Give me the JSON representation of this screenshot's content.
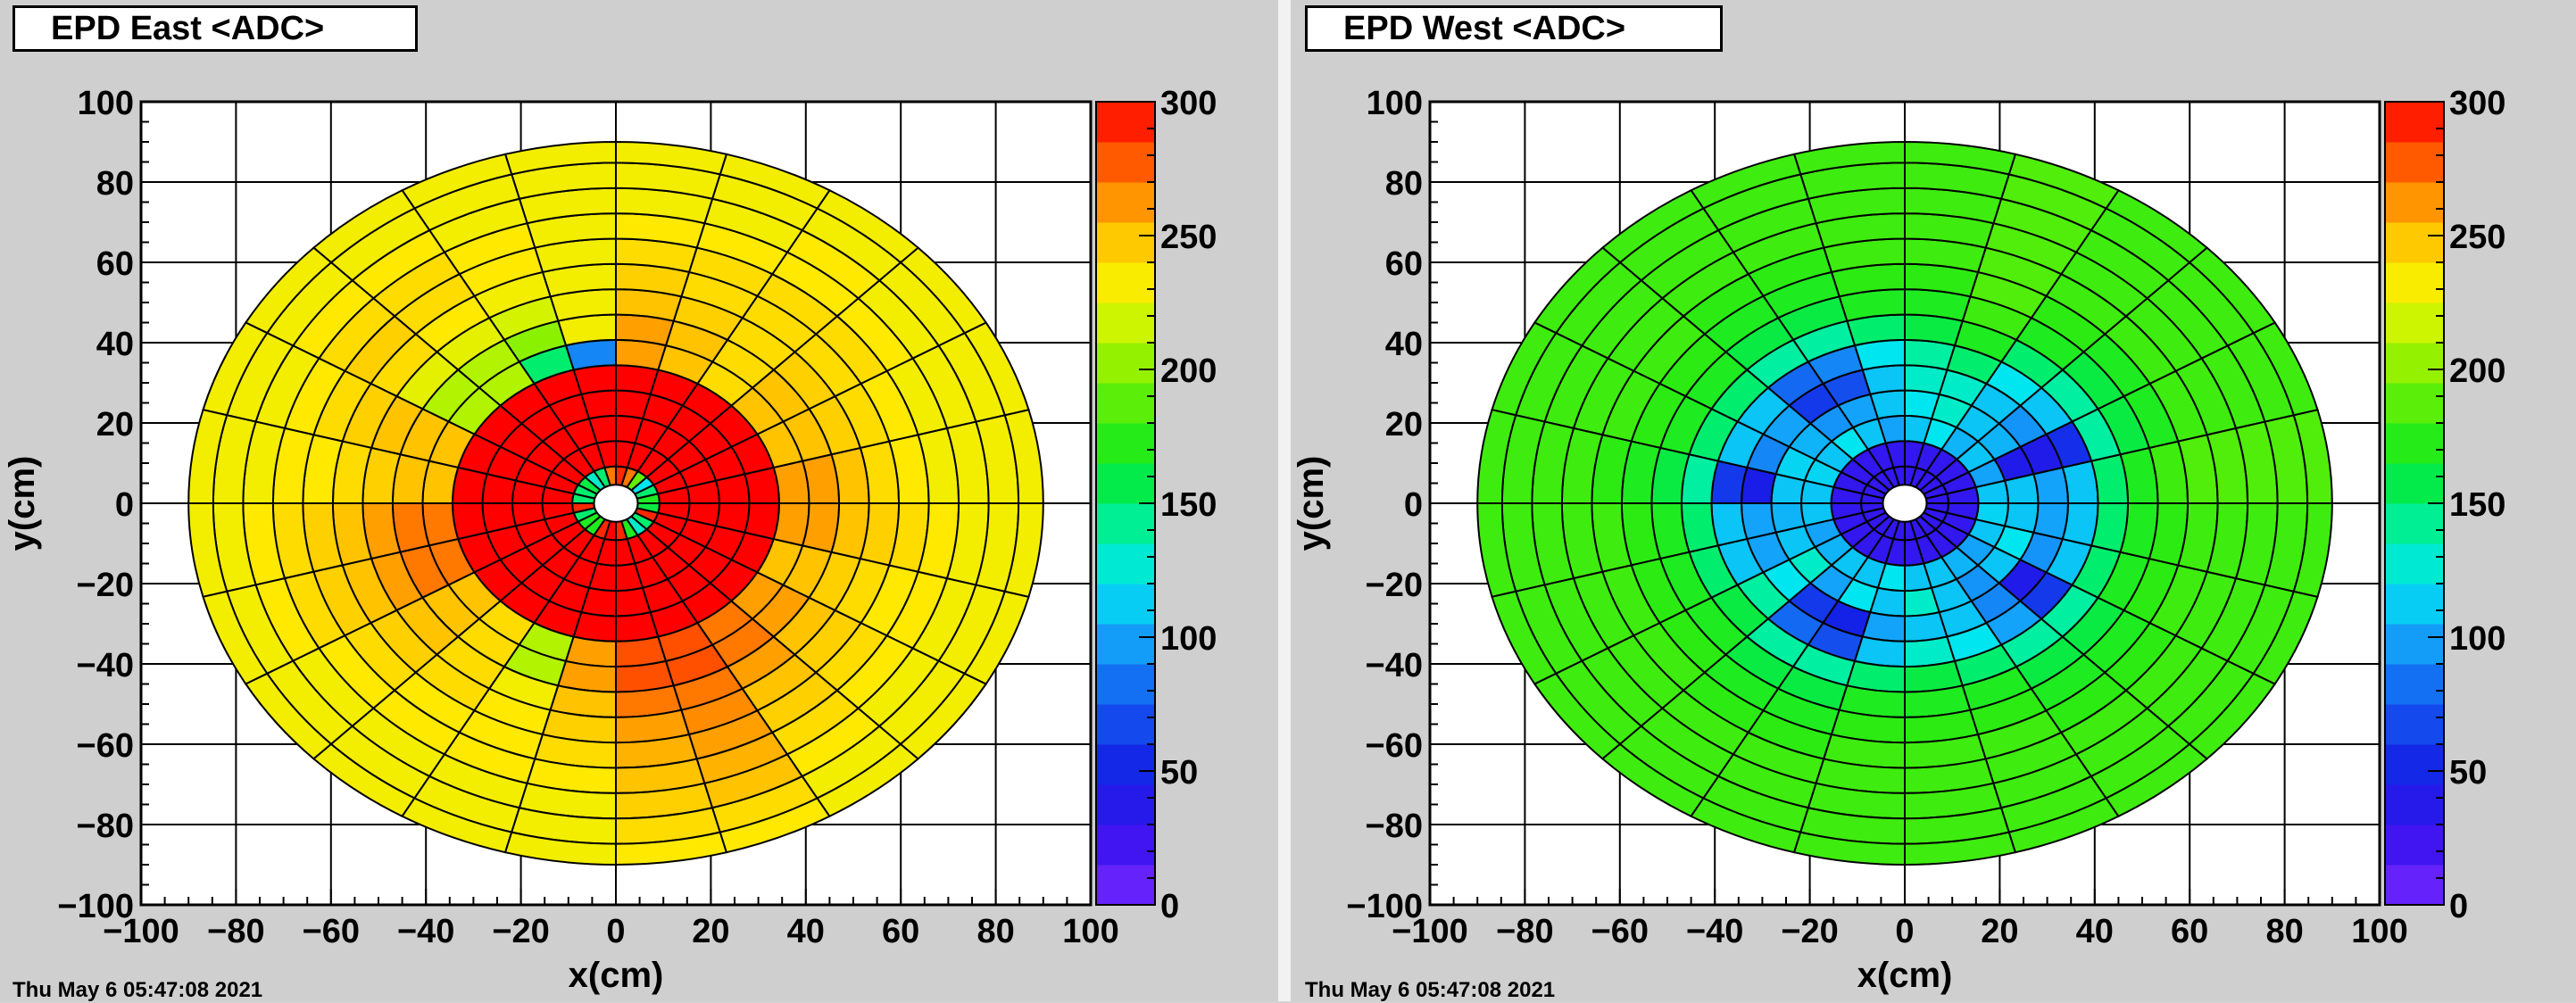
{
  "footer_text": "Thu May 6 05:47:08 2021",
  "chart_data": [
    {
      "type": "heatmap",
      "title": "EPD East <ADC>",
      "xlabel": "x(cm)",
      "ylabel": "y(cm)",
      "xlim": [
        -100,
        100
      ],
      "ylim": [
        -100,
        100
      ],
      "x_ticks": [
        "−100",
        "−80",
        "−60",
        "−40",
        "−20",
        "0",
        "20",
        "40",
        "60",
        "80",
        "100"
      ],
      "y_ticks": [
        "100",
        "80",
        "60",
        "40",
        "20",
        "0",
        "−20",
        "−40",
        "−60",
        "−80",
        "−100"
      ],
      "zlim": [
        0,
        300
      ],
      "z_ticks": [
        "300",
        "250",
        "200",
        "150",
        "100",
        "50",
        "0"
      ],
      "grid": true,
      "ring_edges_cm": [
        4.6,
        9.2,
        15.5,
        21.8,
        28.1,
        34.4,
        40.7,
        47.0,
        53.3,
        59.6,
        65.9,
        72.2,
        78.5,
        84.8,
        90.0
      ],
      "sectors_per_ring": 24,
      "tile_values_by_ring": [
        [
          170,
          150,
          120,
          190,
          270,
          290,
          270,
          150,
          130,
          160,
          150,
          150,
          290,
          150,
          170,
          170,
          290,
          300,
          290,
          170,
          130,
          150,
          290,
          160
        ],
        [
          300,
          300,
          300,
          300,
          300,
          300,
          300,
          300,
          300,
          300,
          300,
          300,
          300,
          300,
          300,
          300,
          300,
          300,
          300,
          300,
          300,
          300,
          300,
          300
        ],
        [
          300,
          300,
          300,
          300,
          300,
          300,
          300,
          300,
          300,
          300,
          300,
          300,
          300,
          300,
          300,
          300,
          300,
          300,
          300,
          300,
          300,
          300,
          300,
          300
        ],
        [
          300,
          300,
          300,
          300,
          300,
          300,
          300,
          300,
          300,
          300,
          300,
          300,
          300,
          300,
          300,
          300,
          300,
          300,
          300,
          300,
          300,
          300,
          300,
          300
        ],
        [
          300,
          300,
          300,
          300,
          300,
          300,
          300,
          300,
          300,
          300,
          300,
          300,
          300,
          300,
          300,
          300,
          300,
          300,
          300,
          300,
          300,
          300,
          300,
          300
        ],
        [
          260,
          250,
          250,
          240,
          250,
          260,
          90,
          150,
          210,
          210,
          250,
          250,
          270,
          270,
          250,
          240,
          210,
          260,
          280,
          280,
          270,
          260,
          250,
          260
        ],
        [
          260,
          250,
          250,
          240,
          250,
          260,
          230,
          200,
          210,
          210,
          250,
          250,
          270,
          270,
          250,
          240,
          210,
          260,
          280,
          280,
          270,
          260,
          250,
          260
        ],
        [
          250,
          245,
          245,
          240,
          245,
          250,
          230,
          220,
          225,
          225,
          250,
          245,
          260,
          260,
          250,
          240,
          230,
          250,
          270,
          270,
          260,
          250,
          245,
          250
        ],
        [
          240,
          240,
          240,
          240,
          240,
          245,
          230,
          230,
          235,
          240,
          245,
          240,
          250,
          250,
          245,
          240,
          235,
          245,
          260,
          265,
          250,
          245,
          240,
          245
        ],
        [
          235,
          235,
          240,
          240,
          240,
          240,
          230,
          235,
          240,
          245,
          240,
          235,
          245,
          245,
          240,
          235,
          235,
          240,
          255,
          260,
          245,
          240,
          235,
          240
        ],
        [
          230,
          230,
          235,
          235,
          235,
          235,
          230,
          235,
          240,
          240,
          235,
          235,
          240,
          240,
          235,
          235,
          235,
          235,
          250,
          255,
          240,
          235,
          235,
          235
        ],
        [
          230,
          230,
          230,
          235,
          230,
          230,
          230,
          230,
          235,
          235,
          230,
          230,
          235,
          235,
          230,
          230,
          230,
          230,
          245,
          250,
          235,
          230,
          230,
          230
        ],
        [
          230,
          230,
          230,
          230,
          230,
          230,
          230,
          230,
          230,
          230,
          230,
          230,
          230,
          230,
          230,
          230,
          230,
          230,
          240,
          240,
          230,
          230,
          230,
          230
        ],
        [
          230,
          230,
          230,
          230,
          230,
          230,
          230,
          230,
          230,
          230,
          230,
          230,
          230,
          230,
          230,
          230,
          230,
          230,
          235,
          235,
          230,
          230,
          230,
          230
        ]
      ]
    },
    {
      "type": "heatmap",
      "title": "EPD West <ADC>",
      "xlabel": "x(cm)",
      "ylabel": "y(cm)",
      "xlim": [
        -100,
        100
      ],
      "ylim": [
        -100,
        100
      ],
      "x_ticks": [
        "−100",
        "−80",
        "−60",
        "−40",
        "−20",
        "0",
        "20",
        "40",
        "60",
        "80",
        "100"
      ],
      "y_ticks": [
        "100",
        "80",
        "60",
        "40",
        "20",
        "0",
        "−20",
        "−40",
        "−60",
        "−80",
        "−100"
      ],
      "zlim": [
        0,
        300
      ],
      "z_ticks": [
        "300",
        "250",
        "200",
        "150",
        "100",
        "50",
        "0"
      ],
      "grid": true,
      "ring_edges_cm": [
        4.6,
        9.2,
        15.5,
        21.8,
        28.1,
        34.4,
        40.7,
        47.0,
        53.3,
        59.6,
        65.9,
        72.2,
        78.5,
        84.8,
        90.0
      ],
      "sectors_per_ring": 24,
      "tile_values_by_ring": [
        [
          30,
          30,
          30,
          30,
          30,
          30,
          30,
          30,
          30,
          30,
          30,
          30,
          30,
          30,
          30,
          30,
          30,
          30,
          30,
          30,
          30,
          30,
          30,
          30
        ],
        [
          30,
          30,
          30,
          30,
          30,
          30,
          30,
          30,
          30,
          30,
          30,
          30,
          30,
          30,
          30,
          30,
          30,
          30,
          30,
          30,
          30,
          30,
          30,
          30
        ],
        [
          110,
          100,
          110,
          105,
          120,
          110,
          100,
          110,
          120,
          110,
          115,
          110,
          110,
          100,
          105,
          110,
          110,
          120,
          110,
          110,
          105,
          100,
          110,
          115
        ],
        [
          110,
          40,
          105,
          110,
          130,
          120,
          110,
          100,
          95,
          105,
          115,
          110,
          105,
          110,
          130,
          100,
          120,
          110,
          130,
          110,
          95,
          110,
          120,
          110
        ],
        [
          100,
          40,
          95,
          110,
          130,
          130,
          110,
          70,
          60,
          100,
          90,
          45,
          100,
          100,
          120,
          60,
          50,
          100,
          110,
          110,
          90,
          40,
          95,
          100
        ],
        [
          110,
          55,
          110,
          120,
          150,
          140,
          120,
          90,
          80,
          110,
          110,
          60,
          110,
          110,
          140,
          80,
          70,
          110,
          130,
          120,
          100,
          60,
          110,
          110
        ],
        [
          150,
          140,
          140,
          150,
          170,
          160,
          150,
          140,
          140,
          150,
          150,
          140,
          150,
          150,
          160,
          140,
          140,
          150,
          160,
          150,
          140,
          140,
          150,
          150
        ],
        [
          170,
          160,
          160,
          170,
          180,
          170,
          170,
          160,
          160,
          170,
          170,
          160,
          170,
          170,
          170,
          160,
          160,
          170,
          170,
          170,
          160,
          160,
          170,
          170
        ],
        [
          180,
          170,
          170,
          175,
          185,
          175,
          175,
          170,
          170,
          175,
          175,
          170,
          175,
          175,
          175,
          170,
          170,
          175,
          175,
          175,
          170,
          170,
          175,
          175
        ],
        [
          185,
          180,
          180,
          180,
          185,
          180,
          180,
          175,
          175,
          180,
          180,
          175,
          180,
          180,
          180,
          175,
          175,
          180,
          180,
          180,
          175,
          175,
          180,
          180
        ],
        [
          185,
          180,
          180,
          180,
          185,
          180,
          180,
          180,
          180,
          180,
          180,
          180,
          180,
          180,
          180,
          180,
          180,
          180,
          180,
          180,
          180,
          180,
          180,
          180
        ],
        [
          185,
          180,
          180,
          180,
          185,
          180,
          180,
          180,
          180,
          180,
          180,
          180,
          180,
          180,
          180,
          180,
          180,
          180,
          180,
          180,
          180,
          180,
          180,
          180
        ],
        [
          185,
          180,
          180,
          180,
          185,
          180,
          180,
          180,
          180,
          180,
          180,
          180,
          180,
          180,
          180,
          180,
          180,
          180,
          180,
          180,
          180,
          180,
          180,
          180
        ],
        [
          185,
          180,
          180,
          180,
          185,
          180,
          180,
          180,
          180,
          180,
          180,
          180,
          180,
          180,
          180,
          180,
          180,
          180,
          180,
          180,
          180,
          180,
          180,
          180
        ]
      ]
    }
  ]
}
